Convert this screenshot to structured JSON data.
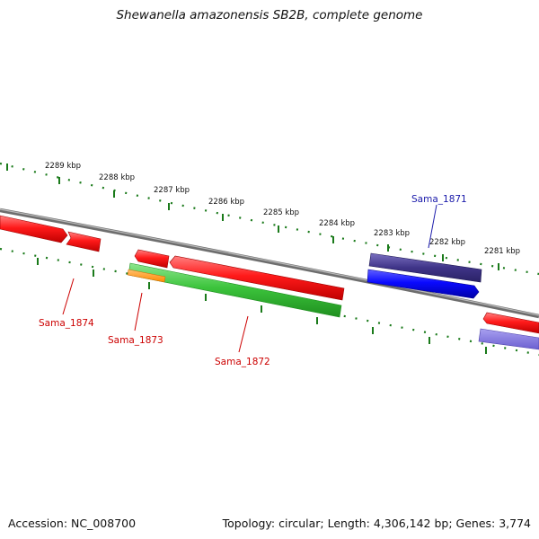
{
  "title": "Shewanella amazonensis SB2B, complete genome",
  "footer": {
    "accession": "Accession: NC_008700",
    "summary": "Topology: circular; Length: 4,306,142 bp; Genes: 3,774"
  },
  "ticks": [
    "2289 kbp",
    "2288 kbp",
    "2287 kbp",
    "2286 kbp",
    "2285 kbp",
    "2284 kbp",
    "2283 kbp",
    "2282 kbp",
    "2281 kbp"
  ],
  "gene_labels": {
    "sama_1871": "Sama_1871",
    "sama_1872": "Sama_1872",
    "sama_1873": "Sama_1873",
    "sama_1874": "Sama_1874"
  },
  "colors": {
    "forward_cds": "#ff1a1a",
    "reverse_cds": "#1a1aff",
    "green_feature": "#3cc43c",
    "orange_feature": "#ff9a1a",
    "purple_feature": "#4a3f90",
    "backbone": "#808080",
    "tick": "#1a7a1a",
    "label_red": "#cc0000",
    "label_blue": "#1a1aaa"
  }
}
